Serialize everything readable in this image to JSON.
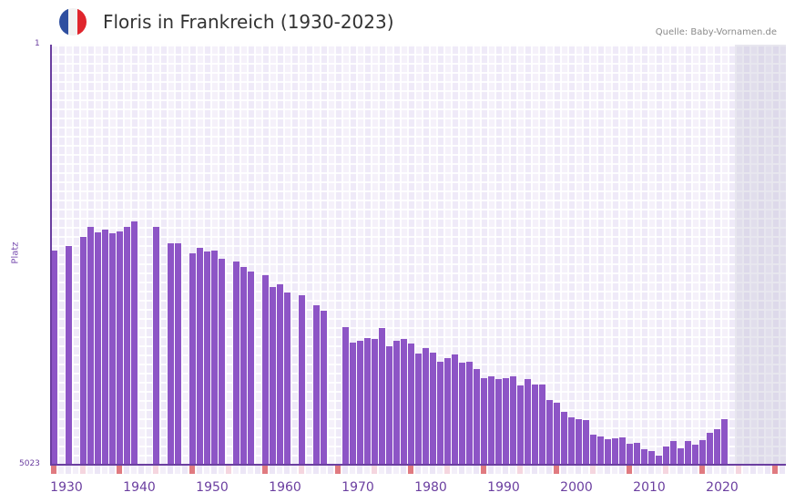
{
  "header": {
    "title": "Floris in Frankreich (1930-2023)",
    "source": "Quelle: Baby-Vornamen.de",
    "flag_colors": [
      "#2f4fa0",
      "#f2f2f2",
      "#e0252d"
    ]
  },
  "axes": {
    "y_top_label": "1",
    "y_bottom_label": "5023",
    "y_title": "Platz",
    "x_labels": [
      "1930",
      "1940",
      "1950",
      "1960",
      "1970",
      "1980",
      "1990",
      "2000",
      "2010",
      "2020"
    ]
  },
  "colors": {
    "bar": "#8d55c6",
    "axis": "#6b3fa0",
    "decade_marker": "#e07a80",
    "half_decade_marker": "#f5d6df",
    "grid": "#efeaf8"
  },
  "chart_data": {
    "type": "bar",
    "title": "Floris in Frankreich (1930-2023)",
    "xlabel": "",
    "ylabel": "Platz",
    "ylim": [
      5023,
      1
    ],
    "y_inverted": true,
    "grid": true,
    "legend": null,
    "source": "Quelle: Baby-Vornamen.de",
    "categories": [
      1930,
      1931,
      1932,
      1933,
      1934,
      1935,
      1936,
      1937,
      1938,
      1939,
      1940,
      1941,
      1942,
      1943,
      1944,
      1945,
      1946,
      1947,
      1948,
      1949,
      1950,
      1951,
      1952,
      1953,
      1954,
      1955,
      1956,
      1957,
      1958,
      1959,
      1960,
      1961,
      1962,
      1963,
      1964,
      1965,
      1966,
      1967,
      1968,
      1969,
      1970,
      1971,
      1972,
      1973,
      1974,
      1975,
      1976,
      1977,
      1978,
      1979,
      1980,
      1981,
      1982,
      1983,
      1984,
      1985,
      1986,
      1987,
      1988,
      1989,
      1990,
      1991,
      1992,
      1993,
      1994,
      1995,
      1996,
      1997,
      1998,
      1999,
      2000,
      2001,
      2002,
      2003,
      2004,
      2005,
      2006,
      2007,
      2008,
      2009,
      2010,
      2011,
      2012,
      2013,
      2014,
      2015,
      2016,
      2017,
      2018,
      2019,
      2020,
      2021,
      2022,
      2023
    ],
    "values": [
      2462,
      null,
      2407,
      null,
      2298,
      2178,
      2243,
      2211,
      2254,
      2232,
      2178,
      2113,
      null,
      null,
      2178,
      null,
      2374,
      2374,
      null,
      2494,
      2429,
      2472,
      2462,
      2560,
      null,
      2592,
      2658,
      2713,
      null,
      2756,
      2898,
      2865,
      2963,
      null,
      2996,
      null,
      3116,
      3181,
      null,
      null,
      3378,
      3563,
      3541,
      3508,
      3519,
      3389,
      3607,
      3541,
      3519,
      3574,
      3694,
      3628,
      3683,
      3792,
      3748,
      3705,
      3803,
      3792,
      3879,
      3988,
      3966,
      3999,
      3988,
      3966,
      4075,
      3999,
      4064,
      4064,
      4250,
      4283,
      4392,
      4457,
      4479,
      4490,
      4665,
      4687,
      4719,
      4708,
      4697,
      4774,
      4763,
      4839,
      4861,
      4916,
      4807,
      4741,
      4828,
      4741,
      4785,
      4730,
      4643,
      4599,
      4479,
      null
    ]
  }
}
